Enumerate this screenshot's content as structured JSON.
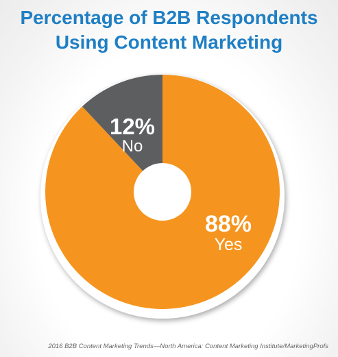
{
  "title_line1": "Percentage of B2B Respondents",
  "title_line2": "Using Content Marketing",
  "source": "2016 B2B Content Marketing Trends—North America: Content Marketing Institute/MarketingProfs",
  "colors": {
    "title": "#1f7fc4",
    "yes": "#f5951f",
    "no": "#5d5e60",
    "label": "#ffffff"
  },
  "chart_data": {
    "type": "pie",
    "title": "Percentage of B2B Respondents Using Content Marketing",
    "slices": [
      {
        "label": "Yes",
        "value": 88,
        "display": "88%"
      },
      {
        "label": "No",
        "value": 12,
        "display": "12%"
      }
    ],
    "donut": true
  }
}
